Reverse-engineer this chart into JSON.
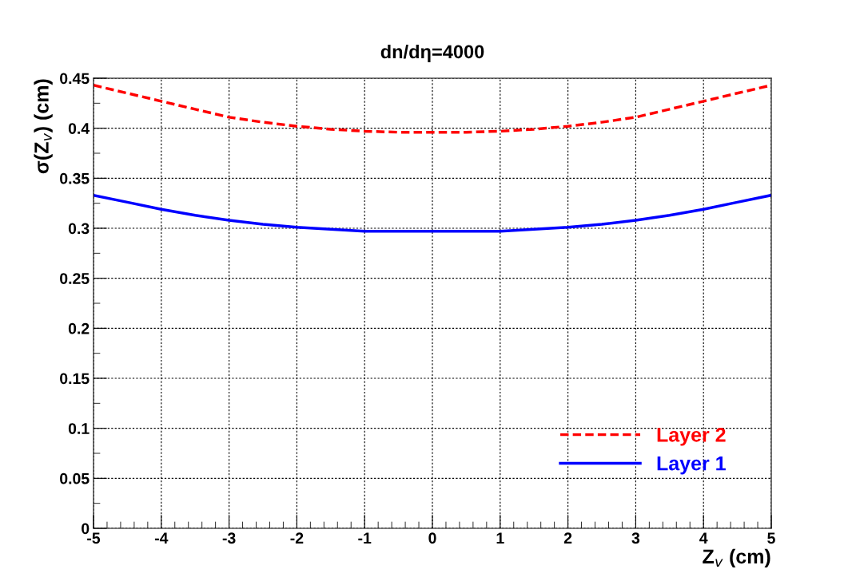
{
  "chart_data": {
    "type": "line",
    "title": "dn/dη=4000",
    "xlabel": "Z$_{v}$ (cm)",
    "ylabel": "σ(Z$_{v}$) (cm)",
    "x": [
      -5,
      -4.5,
      -4,
      -3.5,
      -3,
      -2.5,
      -2,
      -1.5,
      -1,
      -0.5,
      0,
      0.5,
      1,
      1.5,
      2,
      2.5,
      3,
      3.5,
      4,
      4.5,
      5
    ],
    "series": [
      {
        "name": "Layer 2",
        "color": "#ff0000",
        "line_style": "dashed",
        "values": [
          0.443,
          0.435,
          0.427,
          0.419,
          0.411,
          0.406,
          0.402,
          0.399,
          0.397,
          0.396,
          0.396,
          0.396,
          0.397,
          0.399,
          0.402,
          0.406,
          0.411,
          0.419,
          0.427,
          0.435,
          0.443
        ]
      },
      {
        "name": "Layer 1",
        "color": "#0000ff",
        "line_style": "solid",
        "values": [
          0.333,
          0.326,
          0.319,
          0.313,
          0.308,
          0.304,
          0.301,
          0.299,
          0.297,
          0.297,
          0.297,
          0.297,
          0.297,
          0.299,
          0.301,
          0.304,
          0.308,
          0.313,
          0.319,
          0.326,
          0.333
        ]
      }
    ],
    "xlim": [
      -5,
      5
    ],
    "ylim": [
      0,
      0.45
    ],
    "xticks": [
      -5,
      -4,
      -3,
      -2,
      -1,
      0,
      1,
      2,
      3,
      4,
      5
    ],
    "yticks": [
      0,
      0.05,
      0.1,
      0.15,
      0.2,
      0.25,
      0.3,
      0.35,
      0.4,
      0.45
    ],
    "grid": true,
    "legend": "bottom right"
  }
}
